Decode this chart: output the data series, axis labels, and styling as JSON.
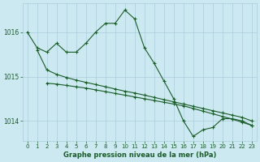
{
  "title": "Graphe pression niveau de la mer (hPa)",
  "background_color": "#cce8f0",
  "grid_color": "#aaccdd",
  "line_color": "#1a5c2a",
  "xlim": [
    -0.5,
    23.5
  ],
  "ylim": [
    1013.55,
    1016.65
  ],
  "yticks": [
    1014,
    1015,
    1016
  ],
  "xticks": [
    0,
    1,
    2,
    3,
    4,
    5,
    6,
    7,
    8,
    9,
    10,
    11,
    12,
    13,
    14,
    15,
    16,
    17,
    18,
    19,
    20,
    21,
    22,
    23
  ],
  "series": [
    {
      "x": [
        0,
        1,
        2,
        3,
        4,
        5,
        6,
        7,
        8,
        9,
        10,
        11,
        12,
        13,
        14,
        15,
        16,
        17,
        18,
        19,
        20,
        21,
        22,
        23
      ],
      "y": [
        1016.0,
        1015.65,
        1015.55,
        1015.75,
        1015.55,
        1015.55,
        1015.75,
        1016.0,
        1016.2,
        1016.2,
        1016.5,
        1016.3,
        1015.65,
        1015.3,
        1014.9,
        1014.5,
        1014.0,
        1013.65,
        1013.8,
        1013.85,
        1014.05,
        1014.05,
        1014.0,
        1013.9
      ]
    },
    {
      "x": [
        1,
        2,
        3,
        4,
        5,
        6,
        7,
        8,
        9,
        10,
        11,
        12,
        13,
        14,
        15,
        16,
        17,
        18,
        19,
        20,
        21,
        22,
        23
      ],
      "y": [
        1015.6,
        1015.15,
        1015.05,
        1014.98,
        1014.92,
        1014.87,
        1014.82,
        1014.77,
        1014.72,
        1014.67,
        1014.63,
        1014.58,
        1014.53,
        1014.48,
        1014.43,
        1014.38,
        1014.33,
        1014.28,
        1014.23,
        1014.18,
        1014.13,
        1014.08,
        1014.0
      ]
    },
    {
      "x": [
        2,
        3,
        4,
        5,
        6,
        7,
        8,
        9,
        10,
        11,
        12,
        13,
        14,
        15,
        16,
        17,
        18,
        19,
        20,
        21,
        22,
        23
      ],
      "y": [
        1014.85,
        1014.83,
        1014.8,
        1014.77,
        1014.74,
        1014.7,
        1014.66,
        1014.62,
        1014.58,
        1014.54,
        1014.5,
        1014.46,
        1014.42,
        1014.38,
        1014.34,
        1014.28,
        1014.22,
        1014.16,
        1014.1,
        1014.04,
        1013.97,
        1013.9
      ]
    }
  ]
}
